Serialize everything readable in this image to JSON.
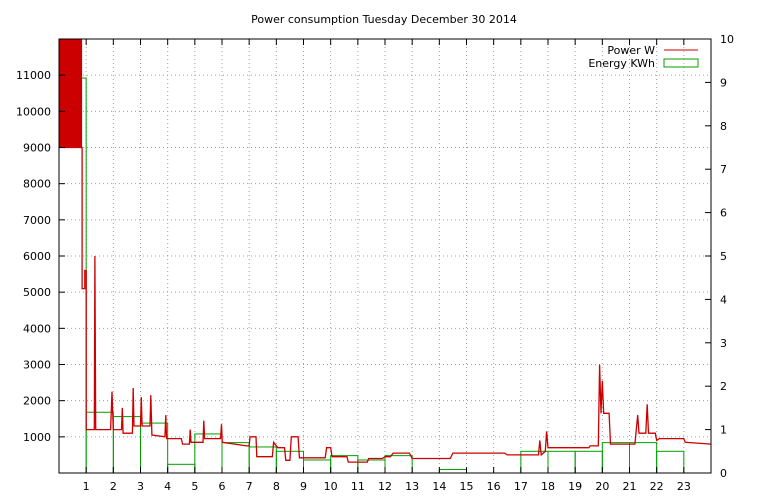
{
  "chart_data": {
    "type": "line",
    "title": "Power consumption Tuesday December 30 2014",
    "x_axis": {
      "range": [
        0,
        24
      ],
      "tick_labels": [
        "1",
        "2",
        "3",
        "4",
        "5",
        "6",
        "7",
        "8",
        "9",
        "10",
        "11",
        "12",
        "13",
        "14",
        "15",
        "16",
        "17",
        "18",
        "19",
        "20",
        "21",
        "22",
        "23"
      ]
    },
    "y_left": {
      "range": [
        0,
        12000
      ],
      "tick_labels": [
        "1000",
        "2000",
        "3000",
        "4000",
        "5000",
        "6000",
        "7000",
        "8000",
        "9000",
        "10000",
        "11000"
      ],
      "tick_values": [
        1000,
        2000,
        3000,
        4000,
        5000,
        6000,
        7000,
        8000,
        9000,
        10000,
        11000
      ]
    },
    "y_right": {
      "range": [
        0,
        10
      ],
      "tick_labels": [
        "0",
        "1",
        "2",
        "3",
        "4",
        "5",
        "6",
        "7",
        "8",
        "9",
        "10"
      ],
      "tick_values": [
        0,
        1,
        2,
        3,
        4,
        5,
        6,
        7,
        8,
        9,
        10
      ]
    },
    "grid": true,
    "legend_position": "top-right",
    "series": [
      {
        "name": "Power W",
        "axis": "left",
        "style": "line",
        "color": "#cc0000",
        "points": [
          [
            0,
            9000
          ],
          [
            0.85,
            9000
          ],
          [
            0.85,
            5100
          ],
          [
            0.95,
            5100
          ],
          [
            0.95,
            5600
          ],
          [
            1.0,
            5600
          ],
          [
            1.0,
            1200
          ],
          [
            1.3,
            1200
          ],
          [
            1.32,
            6000
          ],
          [
            1.35,
            1200
          ],
          [
            1.9,
            1200
          ],
          [
            1.95,
            2250
          ],
          [
            2.0,
            1200
          ],
          [
            2.3,
            1200
          ],
          [
            2.33,
            1800
          ],
          [
            2.36,
            1100
          ],
          [
            2.7,
            1100
          ],
          [
            2.73,
            2350
          ],
          [
            2.76,
            1300
          ],
          [
            3.0,
            1300
          ],
          [
            3.03,
            2100
          ],
          [
            3.06,
            1300
          ],
          [
            3.35,
            1300
          ],
          [
            3.38,
            2150
          ],
          [
            3.42,
            1050
          ],
          [
            3.9,
            1000
          ],
          [
            3.93,
            1600
          ],
          [
            3.96,
            950
          ],
          [
            4.5,
            950
          ],
          [
            4.55,
            800
          ],
          [
            4.8,
            800
          ],
          [
            4.83,
            1200
          ],
          [
            4.86,
            850
          ],
          [
            5.3,
            850
          ],
          [
            5.33,
            1450
          ],
          [
            5.36,
            950
          ],
          [
            5.95,
            950
          ],
          [
            5.98,
            1350
          ],
          [
            6.01,
            850
          ],
          [
            6.9,
            750
          ],
          [
            7.0,
            750
          ],
          [
            7.03,
            1000
          ],
          [
            7.25,
            1000
          ],
          [
            7.28,
            450
          ],
          [
            7.85,
            450
          ],
          [
            7.9,
            850
          ],
          [
            8.05,
            700
          ],
          [
            8.3,
            700
          ],
          [
            8.35,
            350
          ],
          [
            8.5,
            350
          ],
          [
            8.55,
            1000
          ],
          [
            8.8,
            1000
          ],
          [
            8.85,
            420
          ],
          [
            9.8,
            420
          ],
          [
            9.85,
            700
          ],
          [
            10.0,
            700
          ],
          [
            10.05,
            450
          ],
          [
            10.6,
            450
          ],
          [
            10.65,
            300
          ],
          [
            11.35,
            300
          ],
          [
            11.4,
            400
          ],
          [
            11.9,
            400
          ],
          [
            12.0,
            450
          ],
          [
            12.2,
            450
          ],
          [
            12.3,
            550
          ],
          [
            12.9,
            550
          ],
          [
            13.0,
            400
          ],
          [
            14.4,
            400
          ],
          [
            14.5,
            550
          ],
          [
            16.4,
            550
          ],
          [
            16.5,
            500
          ],
          [
            17.65,
            500
          ],
          [
            17.7,
            900
          ],
          [
            17.75,
            500
          ],
          [
            17.9,
            600
          ],
          [
            17.95,
            1150
          ],
          [
            18.0,
            700
          ],
          [
            19.5,
            700
          ],
          [
            19.55,
            750
          ],
          [
            19.85,
            750
          ],
          [
            19.9,
            3000
          ],
          [
            19.95,
            1650
          ],
          [
            20.0,
            2550
          ],
          [
            20.05,
            1650
          ],
          [
            20.25,
            1650
          ],
          [
            20.3,
            800
          ],
          [
            21.2,
            800
          ],
          [
            21.3,
            1600
          ],
          [
            21.35,
            1100
          ],
          [
            21.6,
            1100
          ],
          [
            21.65,
            1900
          ],
          [
            21.7,
            1100
          ],
          [
            21.95,
            1100
          ],
          [
            22.0,
            900
          ],
          [
            22.1,
            950
          ],
          [
            23.0,
            950
          ],
          [
            23.05,
            850
          ],
          [
            24.0,
            800
          ]
        ]
      },
      {
        "name": "Energy KWh",
        "axis": "right",
        "style": "steps",
        "color": "#00a000",
        "values": [
          9.1,
          1.4,
          1.3,
          1.15,
          0.2,
          0.9,
          0.7,
          0.6,
          0.5,
          0.3,
          0.4,
          0.3,
          0.4,
          0.0,
          0.08,
          0.0,
          0.0,
          0.5,
          0.5,
          0.5,
          0.7,
          0.7,
          0.5,
          0.0
        ]
      }
    ]
  }
}
